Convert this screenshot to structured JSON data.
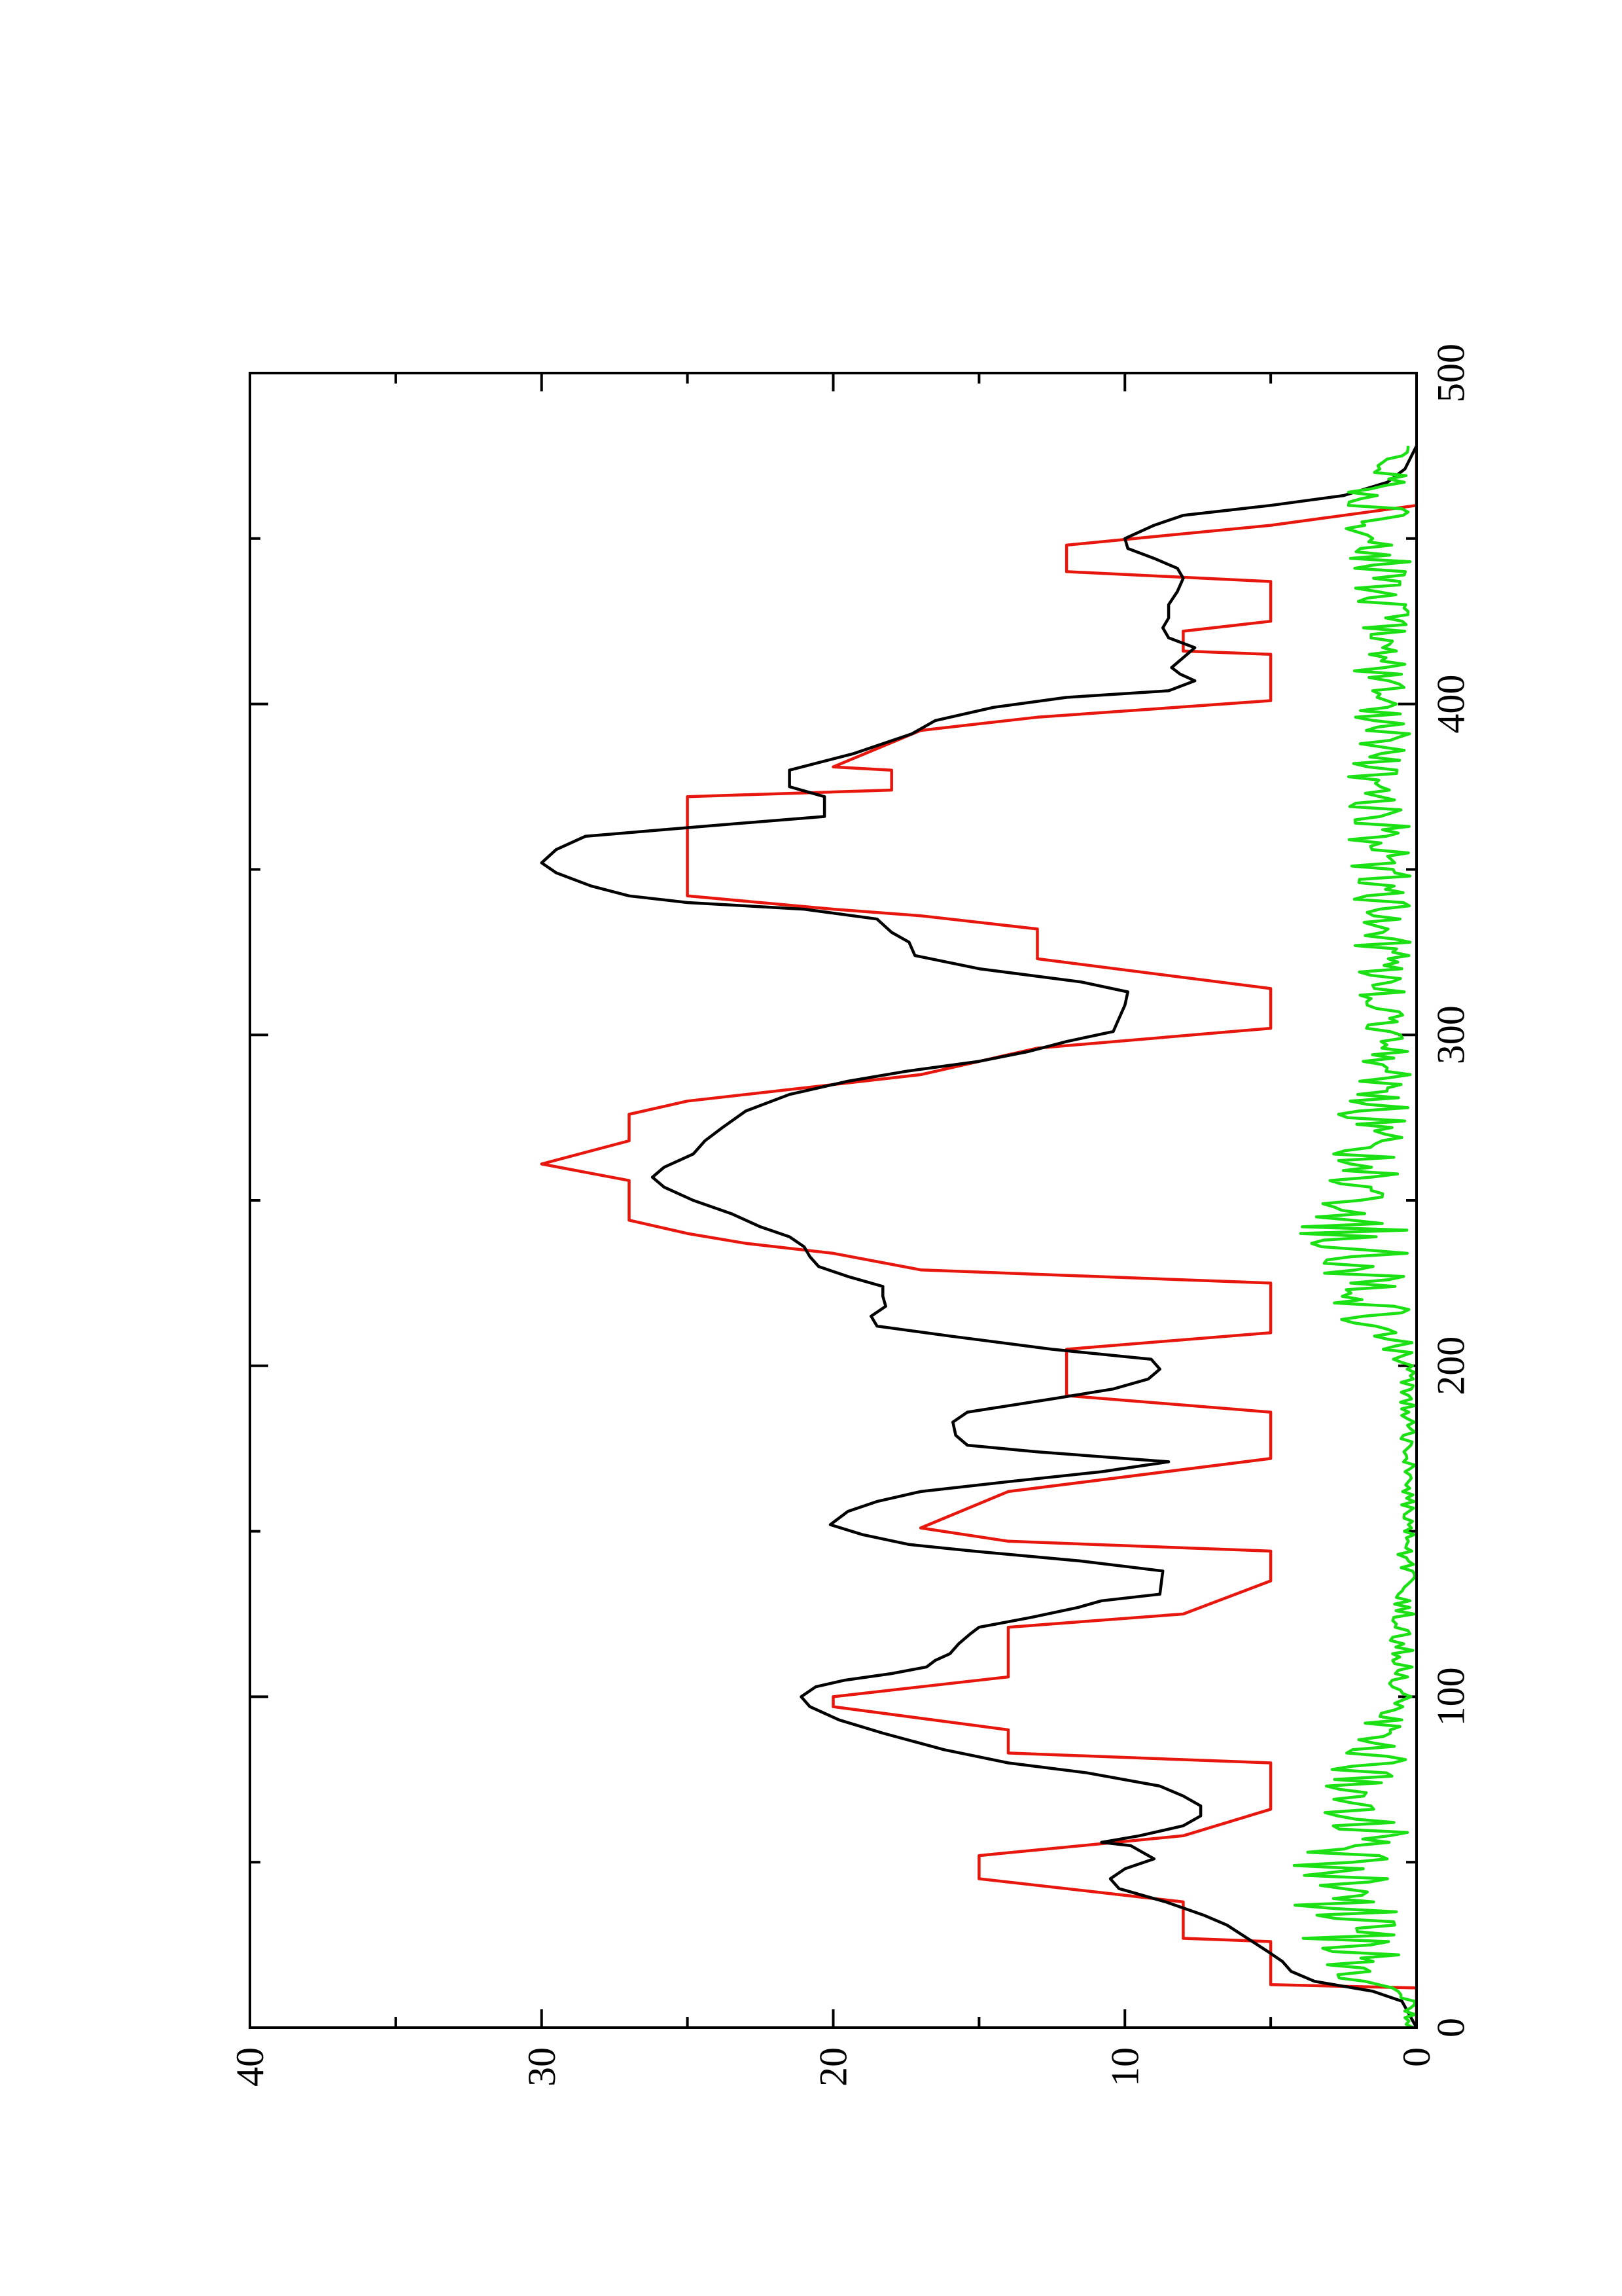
{
  "chart_data": {
    "type": "line",
    "orientation": "rotated-90-ccw",
    "title": "",
    "xlabel": "",
    "ylabel": "",
    "xlim": [
      0,
      500
    ],
    "ylim": [
      0,
      40
    ],
    "x_ticks": [
      0,
      100,
      200,
      300,
      400,
      500
    ],
    "y_ticks": [
      0,
      10,
      20,
      30,
      40
    ],
    "x_tick_labels": [
      "0",
      "100",
      "200",
      "300",
      "400",
      "500"
    ],
    "y_tick_labels": [
      "0",
      "10",
      "20",
      "30",
      "40"
    ],
    "x_minor_ticks": [
      50,
      150,
      250,
      350,
      450
    ],
    "y_minor_ticks": [
      5,
      15,
      25,
      35
    ],
    "grid": false,
    "legend": "none",
    "series": [
      {
        "color": "#e8170e",
        "style": "piecewise-linear",
        "points": [
          [
            0,
            0
          ],
          [
            12,
            0
          ],
          [
            13,
            5
          ],
          [
            26,
            5
          ],
          [
            27,
            8
          ],
          [
            38,
            8
          ],
          [
            45,
            15
          ],
          [
            52,
            15
          ],
          [
            58,
            8
          ],
          [
            66,
            5
          ],
          [
            80,
            5
          ],
          [
            81,
            8
          ],
          [
            83,
            14
          ],
          [
            90,
            14
          ],
          [
            97,
            20
          ],
          [
            100,
            20
          ],
          [
            103,
            17
          ],
          [
            106,
            14
          ],
          [
            121,
            14
          ],
          [
            125,
            8
          ],
          [
            135,
            5
          ],
          [
            144,
            5
          ],
          [
            147,
            14
          ],
          [
            151,
            17
          ],
          [
            162,
            14
          ],
          [
            172,
            5
          ],
          [
            186,
            5
          ],
          [
            191,
            12
          ],
          [
            205,
            12
          ],
          [
            210,
            5
          ],
          [
            225,
            5
          ],
          [
            229,
            17
          ],
          [
            234,
            20
          ],
          [
            237,
            23
          ],
          [
            240,
            25
          ],
          [
            244,
            27
          ],
          [
            256,
            27
          ],
          [
            261,
            30
          ],
          [
            268,
            27
          ],
          [
            276,
            27
          ],
          [
            280,
            25
          ],
          [
            288,
            17
          ],
          [
            296,
            13
          ],
          [
            302,
            5
          ],
          [
            314,
            5
          ],
          [
            323,
            13
          ],
          [
            332,
            13
          ],
          [
            336,
            17
          ],
          [
            338,
            20
          ],
          [
            342,
            25
          ],
          [
            372,
            25
          ],
          [
            374,
            18
          ],
          [
            380,
            18
          ],
          [
            381,
            20
          ],
          [
            392,
            17
          ],
          [
            396,
            13
          ],
          [
            401,
            5
          ],
          [
            415,
            5
          ],
          [
            416,
            8
          ],
          [
            422,
            8
          ],
          [
            425,
            5
          ],
          [
            437,
            5
          ],
          [
            440,
            12
          ],
          [
            448,
            12
          ],
          [
            454,
            5
          ],
          [
            460,
            0
          ],
          [
            478,
            0
          ]
        ]
      },
      {
        "color": "#000000",
        "style": "line",
        "points": [
          [
            0,
            0
          ],
          [
            8,
            0.5
          ],
          [
            11,
            1.5
          ],
          [
            14,
            3.5
          ],
          [
            17,
            4.3
          ],
          [
            20,
            4.6
          ],
          [
            23,
            5.1
          ],
          [
            27,
            5.8
          ],
          [
            31,
            6.5
          ],
          [
            34,
            7.3
          ],
          [
            38,
            8.6
          ],
          [
            42,
            10.2
          ],
          [
            45,
            10.5
          ],
          [
            48,
            10.0
          ],
          [
            51,
            9.0
          ],
          [
            55,
            9.8
          ],
          [
            56,
            10.8
          ],
          [
            58,
            9.5
          ],
          [
            61,
            8.0
          ],
          [
            64,
            7.4
          ],
          [
            67,
            7.4
          ],
          [
            70,
            8.0
          ],
          [
            73,
            8.8
          ],
          [
            77,
            11.3
          ],
          [
            80,
            14.0
          ],
          [
            84,
            16.2
          ],
          [
            89,
            18.3
          ],
          [
            93,
            19.8
          ],
          [
            97,
            20.8
          ],
          [
            100,
            21.1
          ],
          [
            103,
            20.6
          ],
          [
            105,
            19.6
          ],
          [
            107,
            18.0
          ],
          [
            109,
            16.8
          ],
          [
            111,
            16.5
          ],
          [
            113,
            16.0
          ],
          [
            116,
            15.7
          ],
          [
            119,
            15.3
          ],
          [
            121,
            15.0
          ],
          [
            124,
            13.2
          ],
          [
            127,
            11.6
          ],
          [
            129,
            10.8
          ],
          [
            131,
            8.8
          ],
          [
            138,
            8.7
          ],
          [
            141,
            11.5
          ],
          [
            144,
            15.2
          ],
          [
            146,
            17.4
          ],
          [
            149,
            19.0
          ],
          [
            152,
            20.1
          ],
          [
            156,
            19.5
          ],
          [
            159,
            18.5
          ],
          [
            162,
            17.0
          ],
          [
            165,
            14.0
          ],
          [
            168,
            10.8
          ],
          [
            171,
            8.5
          ],
          [
            174,
            13.0
          ],
          [
            176,
            15.4
          ],
          [
            179,
            15.8
          ],
          [
            183,
            15.9
          ],
          [
            186,
            15.4
          ],
          [
            190,
            12.5
          ],
          [
            193,
            10.4
          ],
          [
            196,
            9.2
          ],
          [
            199,
            8.8
          ],
          [
            202,
            9.1
          ],
          [
            205,
            12.5
          ],
          [
            209,
            16.0
          ],
          [
            212,
            18.5
          ],
          [
            215,
            18.7
          ],
          [
            218,
            18.2
          ],
          [
            221,
            18.3
          ],
          [
            224,
            18.3
          ],
          [
            227,
            19.5
          ],
          [
            230,
            20.5
          ],
          [
            233,
            20.8
          ],
          [
            236,
            21.0
          ],
          [
            239,
            21.5
          ],
          [
            242,
            22.5
          ],
          [
            246,
            23.5
          ],
          [
            250,
            24.8
          ],
          [
            254,
            25.8
          ],
          [
            257,
            26.2
          ],
          [
            260,
            25.8
          ],
          [
            264,
            24.8
          ],
          [
            268,
            24.4
          ],
          [
            272,
            23.8
          ],
          [
            277,
            23.0
          ],
          [
            282,
            21.5
          ],
          [
            286,
            19.5
          ],
          [
            289,
            17.5
          ],
          [
            292,
            15.0
          ],
          [
            295,
            13.3
          ],
          [
            298,
            12.0
          ],
          [
            301,
            10.4
          ],
          [
            305,
            10.2
          ],
          [
            309,
            10.0
          ],
          [
            313,
            9.9
          ],
          [
            316,
            11.5
          ],
          [
            320,
            15.0
          ],
          [
            324,
            17.2
          ],
          [
            328,
            17.4
          ],
          [
            331,
            18.0
          ],
          [
            335,
            18.5
          ],
          [
            338,
            21.0
          ],
          [
            340,
            25.0
          ],
          [
            342,
            27.0
          ],
          [
            345,
            28.3
          ],
          [
            349,
            29.5
          ],
          [
            352,
            30.0
          ],
          [
            356,
            29.5
          ],
          [
            360,
            28.5
          ],
          [
            363,
            24.5
          ],
          [
            366,
            20.3
          ],
          [
            372,
            20.3
          ],
          [
            375,
            21.5
          ],
          [
            380,
            21.5
          ],
          [
            385,
            19.3
          ],
          [
            391,
            17.3
          ],
          [
            395,
            16.5
          ],
          [
            399,
            14.5
          ],
          [
            402,
            12.0
          ],
          [
            404,
            8.5
          ],
          [
            407,
            7.6
          ],
          [
            409,
            8.1
          ],
          [
            411,
            8.4
          ],
          [
            414,
            8.0
          ],
          [
            417,
            7.6
          ],
          [
            420,
            8.5
          ],
          [
            423,
            8.7
          ],
          [
            426,
            8.5
          ],
          [
            430,
            8.5
          ],
          [
            434,
            8.2
          ],
          [
            438,
            8.0
          ],
          [
            441,
            8.2
          ],
          [
            444,
            9.0
          ],
          [
            447,
            9.9
          ],
          [
            450,
            10.0
          ],
          [
            454,
            9.0
          ],
          [
            457,
            8.0
          ],
          [
            460,
            5.0
          ],
          [
            463,
            2.5
          ],
          [
            467,
            1.0
          ],
          [
            471,
            0.4
          ],
          [
            478,
            0
          ]
        ]
      },
      {
        "color": "#1ae014",
        "style": "noisy",
        "seed": 7,
        "regions": [
          [
            0,
            0.2
          ],
          [
            10,
            0.3
          ],
          [
            15,
            1.8
          ],
          [
            40,
            2.5
          ],
          [
            60,
            2.0
          ],
          [
            85,
            1.5
          ],
          [
            100,
            0.6
          ],
          [
            130,
            0.4
          ],
          [
            155,
            0.3
          ],
          [
            200,
            0.3
          ],
          [
            215,
            1.5
          ],
          [
            240,
            2.2
          ],
          [
            270,
            1.6
          ],
          [
            300,
            1.0
          ],
          [
            330,
            1.2
          ],
          [
            365,
            1.3
          ],
          [
            400,
            1.2
          ],
          [
            440,
            1.2
          ],
          [
            465,
            1.4
          ],
          [
            478,
            0.2
          ]
        ]
      }
    ]
  }
}
